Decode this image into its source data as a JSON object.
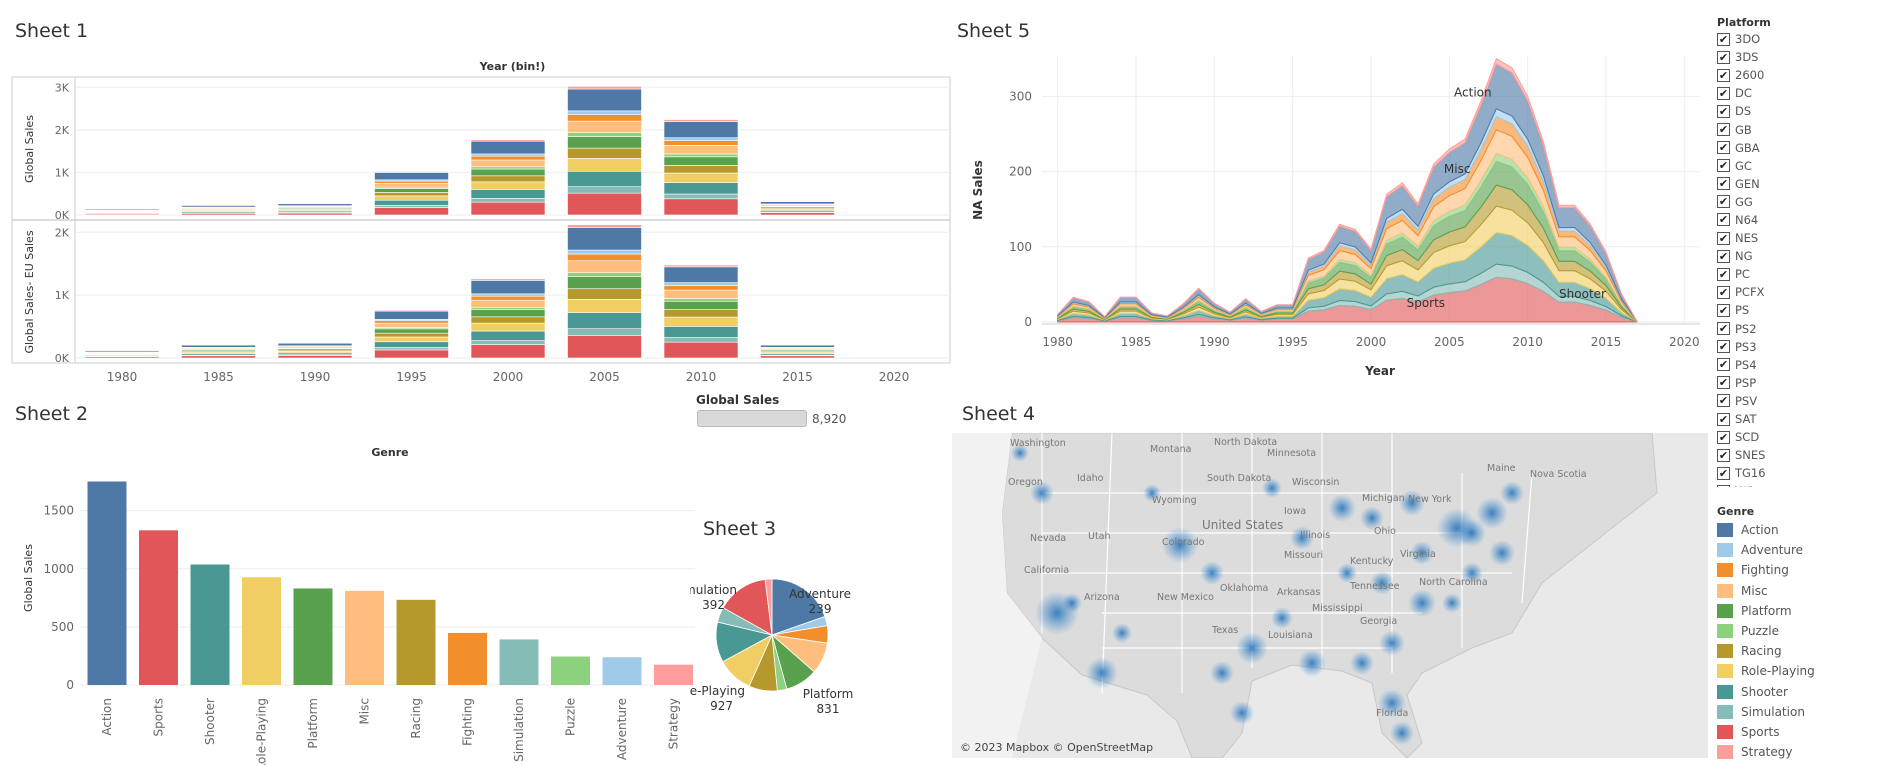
{
  "sheet1": {
    "title": "Sheet 1",
    "column_header": "Year (bin!)"
  },
  "sheet2": {
    "title": "Sheet 2",
    "column_header": "Genre"
  },
  "sheet3": {
    "title": "Sheet 3"
  },
  "sheet4": {
    "title": "Sheet 4",
    "attribution": "© 2023 Mapbox © OpenStreetMap"
  },
  "sheet5": {
    "title": "Sheet 5"
  },
  "filter": {
    "label": "Global Sales",
    "value": "8,920"
  },
  "platform_legend": {
    "title": "Platform",
    "items": [
      "3DO",
      "3DS",
      "2600",
      "DC",
      "DS",
      "GB",
      "GBA",
      "GC",
      "GEN",
      "GG",
      "N64",
      "NES",
      "NG",
      "PC",
      "PCFX",
      "PS",
      "PS2",
      "PS3",
      "PS4",
      "PSP",
      "PSV",
      "SAT",
      "SCD",
      "SNES",
      "TG16",
      "WS"
    ]
  },
  "genre_legend": {
    "title": "Genre",
    "items": [
      {
        "name": "Action",
        "color": "#4e79a7"
      },
      {
        "name": "Adventure",
        "color": "#a0cbe8"
      },
      {
        "name": "Fighting",
        "color": "#f28e2b"
      },
      {
        "name": "Misc",
        "color": "#ffbe7d"
      },
      {
        "name": "Platform",
        "color": "#59a14f"
      },
      {
        "name": "Puzzle",
        "color": "#8cd17d"
      },
      {
        "name": "Racing",
        "color": "#b6992d"
      },
      {
        "name": "Role-Playing",
        "color": "#f1ce63"
      },
      {
        "name": "Shooter",
        "color": "#499894"
      },
      {
        "name": "Simulation",
        "color": "#86bcb6"
      },
      {
        "name": "Sports",
        "color": "#e15759"
      },
      {
        "name": "Strategy",
        "color": "#ff9d9a"
      }
    ]
  },
  "map_labels": [
    "Washington",
    "Oregon",
    "Idaho",
    "Montana",
    "Wyoming",
    "Nevada",
    "Utah",
    "California",
    "Arizona",
    "New Mexico",
    "Colorado",
    "North Dakota",
    "South Dakota",
    "Minnesota",
    "Wisconsin",
    "Michigan",
    "Iowa",
    "Illinois",
    "Missouri",
    "Ohio",
    "Kentucky",
    "Virginia",
    "Oklahoma",
    "Arkansas",
    "Tennessee",
    "Texas",
    "Louisiana",
    "Mississippi",
    "Georgia",
    "North Carolina",
    "Florida",
    "New York",
    "Maine",
    "Nova Scotia",
    "United States"
  ],
  "chart_data": [
    {
      "type": "bar",
      "name": "sheet1-global-sales",
      "stacked": true,
      "x": [
        1980,
        1985,
        1990,
        1995,
        2000,
        2005,
        2010,
        2015
      ],
      "x_ticks": [
        "1980",
        "1985",
        "1990",
        "1995",
        "2000",
        "2005",
        "2010",
        "2015",
        "2020"
      ],
      "xlabel": "",
      "ylabel": "Global Sales",
      "ylim": [
        0,
        3100
      ],
      "y_ticks": [
        0,
        1000,
        2000,
        3000
      ],
      "y_tick_labels": [
        "0K",
        "1K",
        "2K",
        "3K"
      ],
      "totals": [
        150,
        230,
        270,
        1020,
        1770,
        3020,
        2240,
        320
      ]
    },
    {
      "type": "bar",
      "name": "sheet1-global-sales-eu",
      "stacked": true,
      "x": [
        1980,
        1985,
        1990,
        1995,
        2000,
        2005,
        2010,
        2015
      ],
      "ylabel": "Global Sales- EU Sales",
      "ylim": [
        0,
        2100
      ],
      "y_ticks": [
        0,
        1000,
        2000
      ],
      "y_tick_labels": [
        "0K",
        "1K",
        "2K"
      ],
      "totals": [
        120,
        210,
        240,
        760,
        1260,
        2120,
        1480,
        210
      ]
    },
    {
      "type": "bar",
      "name": "sheet2-genre",
      "categories": [
        "Action",
        "Sports",
        "Shooter",
        "Role-Playing",
        "Platform",
        "Misc",
        "Racing",
        "Fighting",
        "Simulation",
        "Puzzle",
        "Adventure",
        "Strategy"
      ],
      "values": [
        1751,
        1331,
        1037,
        927,
        831,
        810,
        733,
        448,
        392,
        245,
        239,
        175
      ],
      "ylabel": "Global Sales",
      "ylim": [
        0,
        1850
      ],
      "y_ticks": [
        0,
        500,
        1000,
        1500
      ],
      "y_tick_labels": [
        "0",
        "500",
        "1000",
        "1500"
      ]
    },
    {
      "type": "pie",
      "name": "sheet3-genre-share",
      "slices": [
        {
          "label": "Action",
          "value": 1751
        },
        {
          "label": "Adventure",
          "value": 239
        },
        {
          "label": "Fighting",
          "value": 448
        },
        {
          "label": "Misc",
          "value": 810
        },
        {
          "label": "Platform",
          "value": 831
        },
        {
          "label": "Puzzle",
          "value": 245
        },
        {
          "label": "Racing",
          "value": 733
        },
        {
          "label": "Role-Playing",
          "value": 927
        },
        {
          "label": "Shooter",
          "value": 1037
        },
        {
          "label": "Simulation",
          "value": 392
        },
        {
          "label": "Sports",
          "value": 1331
        },
        {
          "label": "Strategy",
          "value": 175
        }
      ],
      "labels": [
        {
          "name": "Adventure",
          "value": "239"
        },
        {
          "name": "Simulation",
          "value": "392"
        },
        {
          "name": "Role-Playing",
          "value": "927"
        },
        {
          "name": "Platform",
          "value": "831"
        }
      ]
    },
    {
      "type": "area",
      "name": "sheet5-na-sales",
      "stacked": true,
      "xlabel": "Year",
      "ylabel": "NA Sales",
      "xlim": [
        1979,
        2021
      ],
      "ylim": [
        0,
        355
      ],
      "x_ticks": [
        1980,
        1985,
        1990,
        1995,
        2000,
        2005,
        2010,
        2015,
        2020
      ],
      "y_ticks": [
        0,
        100,
        200,
        300
      ],
      "years": [
        1980,
        1981,
        1982,
        1983,
        1984,
        1985,
        1986,
        1987,
        1988,
        1989,
        1990,
        1991,
        1992,
        1993,
        1994,
        1995,
        1996,
        1997,
        1998,
        1999,
        2000,
        2001,
        2002,
        2003,
        2004,
        2005,
        2006,
        2007,
        2008,
        2009,
        2010,
        2011,
        2012,
        2013,
        2014,
        2015,
        2016,
        2017
      ],
      "totals": [
        10,
        33,
        27,
        7,
        33,
        33,
        12,
        8,
        24,
        45,
        25,
        13,
        31,
        14,
        23,
        23,
        85,
        95,
        130,
        123,
        97,
        170,
        185,
        157,
        210,
        230,
        243,
        293,
        350,
        338,
        300,
        240,
        155,
        155,
        130,
        93,
        37,
        0
      ],
      "annotations": [
        "Action",
        "Misc",
        "Sports",
        "Shooter"
      ]
    }
  ]
}
